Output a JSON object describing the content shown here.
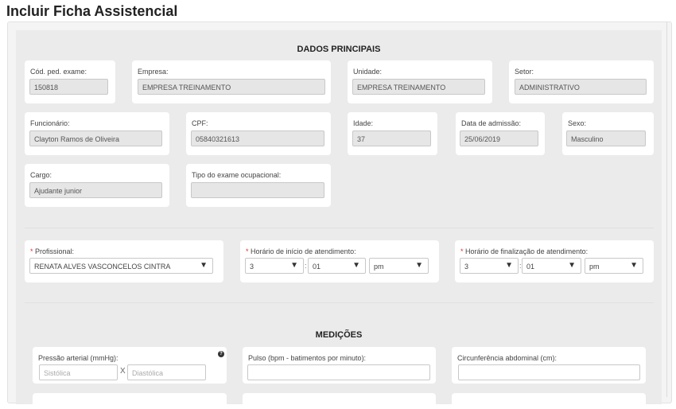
{
  "title": "Incluir Ficha Assistencial",
  "dados": {
    "heading": "DADOS PRINCIPAIS",
    "cod": {
      "label": "Cód. ped. exame:",
      "value": "150818"
    },
    "empresa": {
      "label": "Empresa:",
      "value": "EMPRESA TREINAMENTO"
    },
    "unidade": {
      "label": "Unidade:",
      "value": "EMPRESA TREINAMENTO"
    },
    "setor": {
      "label": "Setor:",
      "value": "ADMINISTRATIVO"
    },
    "funcionario": {
      "label": "Funcionário:",
      "value": "Clayton Ramos de Oliveira"
    },
    "cpf": {
      "label": "CPF:",
      "value": "05840321613"
    },
    "idade": {
      "label": "Idade:",
      "value": "37"
    },
    "admissao": {
      "label": "Data de admissão:",
      "value": "25/06/2019"
    },
    "sexo": {
      "label": "Sexo:",
      "value": "Masculino"
    },
    "cargo": {
      "label": "Cargo:",
      "value": "Ajudante junior"
    },
    "tipo": {
      "label": "Tipo do exame ocupacional:",
      "value": ""
    }
  },
  "atendimento": {
    "required_mark": "*",
    "profissional": {
      "label": "Profissional:",
      "value": "RENATA ALVES VASCONCELOS CINTRA"
    },
    "inicio": {
      "label": "Horário de início de atendimento:",
      "hour": "3",
      "minute": "01",
      "ampm": "pm"
    },
    "fim": {
      "label": "Horário de finalização de atendimento:",
      "hour": "3",
      "minute": "01",
      "ampm": "pm"
    },
    "separator": ":",
    "arrow": "▼"
  },
  "medicoes": {
    "heading": "MEDIÇÕES",
    "pressao": {
      "label": "Pressão arterial (mmHg):",
      "sistolica_ph": "Sistólica",
      "diastolica_ph": "Diastólica",
      "x": "X",
      "help": "?"
    },
    "pulso": {
      "label": "Pulso (bpm - batimentos por minuto):",
      "value": ""
    },
    "circ": {
      "label": "Circunferência abdominal (cm):",
      "value": ""
    }
  }
}
